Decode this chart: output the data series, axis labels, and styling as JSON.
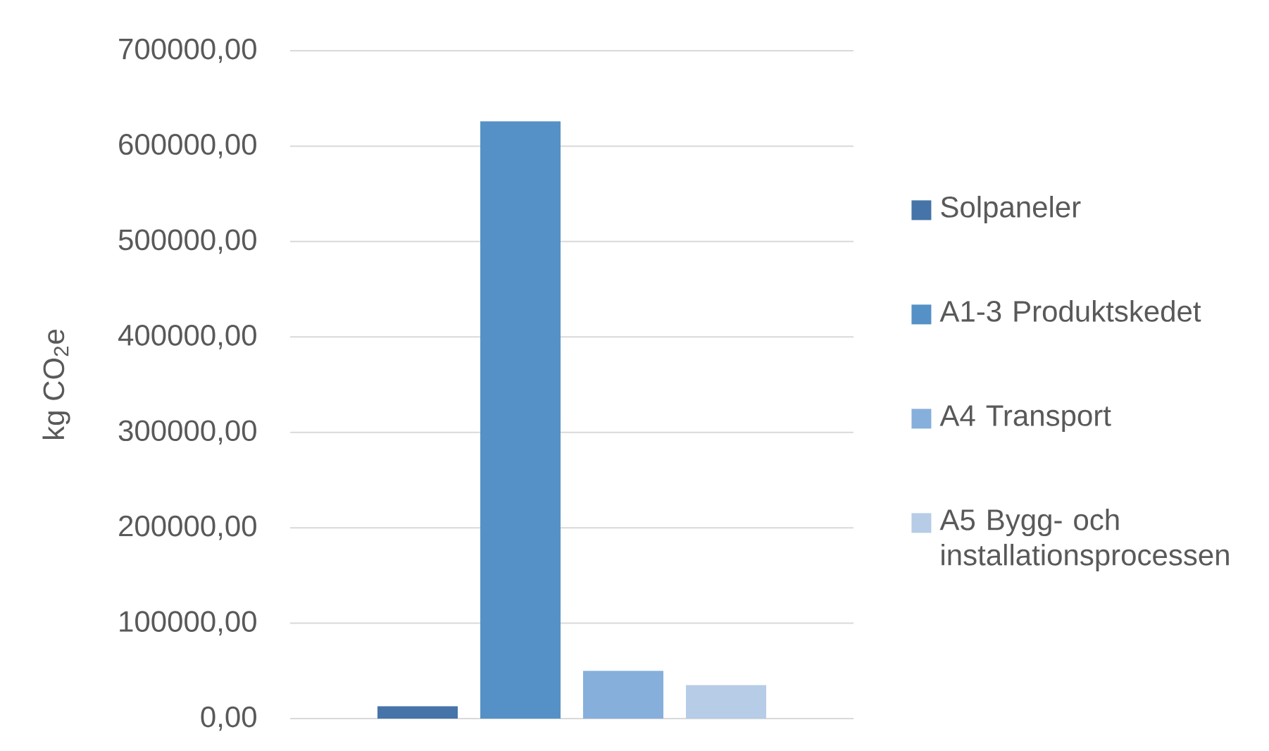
{
  "chart_data": {
    "type": "bar",
    "categories": [
      null
    ],
    "series": [
      {
        "name": "Solpaneler",
        "color": "#4674a8",
        "values": [
          13000
        ]
      },
      {
        "name": "A1-3 Produktskedet",
        "color": "#5591c7",
        "values": [
          626000
        ]
      },
      {
        "name": "A4 Transport",
        "color": "#86afdc",
        "values": [
          50000
        ]
      },
      {
        "name": "A5 Bygg- och installationsprocessen",
        "color": "#b6cce7",
        "values": [
          35000
        ]
      }
    ],
    "ylabel": "kg CO$_{2}$e",
    "ylim": [
      0,
      700000
    ],
    "yticks": [
      {
        "value": 0,
        "label": "0,00"
      },
      {
        "value": 100000,
        "label": "100000,00"
      },
      {
        "value": 200000,
        "label": "200000,00"
      },
      {
        "value": 300000,
        "label": "300000,00"
      },
      {
        "value": 400000,
        "label": "400000,00"
      },
      {
        "value": 500000,
        "label": "500000,00"
      },
      {
        "value": 600000,
        "label": "600000,00"
      },
      {
        "value": 700000,
        "label": "700000,00"
      }
    ],
    "grid": "y",
    "legend": "right",
    "tick_labels": "y"
  }
}
